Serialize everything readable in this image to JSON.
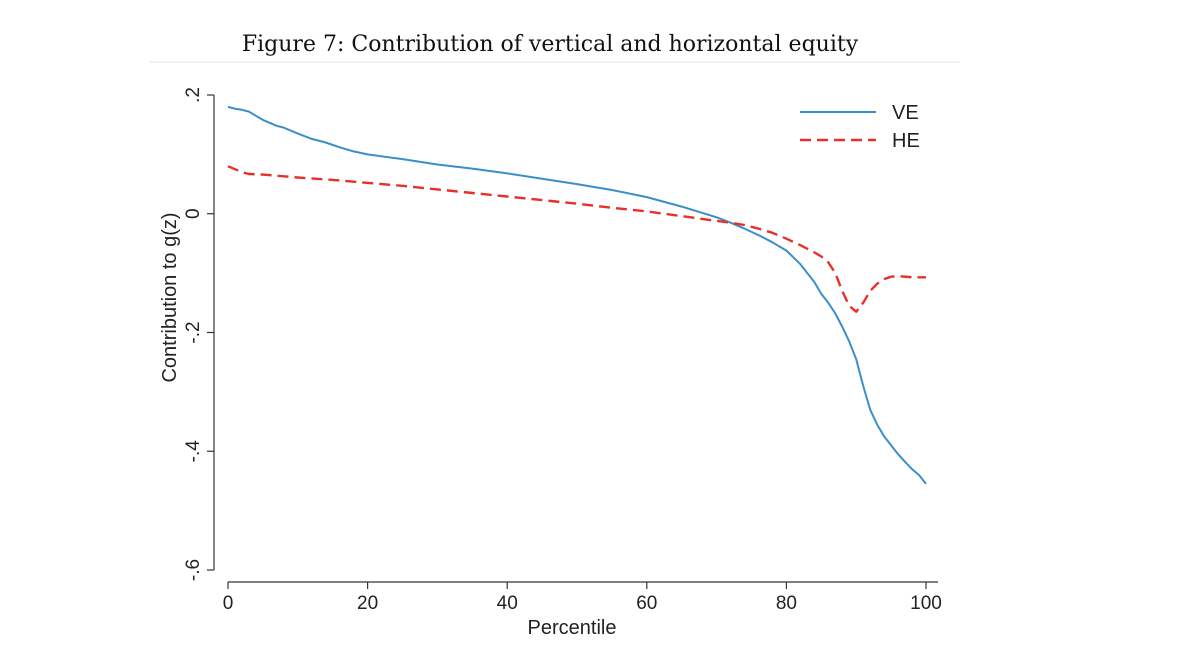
{
  "title": "Figure 7: Contribution of vertical and horizontal equity",
  "chart_data": {
    "type": "line",
    "xlabel": "Percentile",
    "ylabel": "Contribution to g(z)",
    "xlim": [
      0,
      100
    ],
    "ylim": [
      -0.6,
      0.2
    ],
    "xticks": [
      0,
      20,
      40,
      60,
      80,
      100
    ],
    "xtick_labels": [
      "0",
      "20",
      "40",
      "60",
      "80",
      "100"
    ],
    "yticks": [
      0.2,
      0,
      -0.2,
      -0.4,
      -0.6
    ],
    "ytick_labels": [
      ".2",
      "0",
      "-.2",
      "-.4",
      "-.6"
    ],
    "grid": false,
    "legend": "top-right",
    "series": [
      {
        "name": "VE",
        "color": "#3a8fc9",
        "style": "solid",
        "x": [
          0,
          1,
          2,
          3,
          4,
          5,
          6,
          7,
          8,
          10,
          12,
          14,
          16,
          18,
          20,
          25,
          30,
          35,
          40,
          45,
          50,
          55,
          60,
          65,
          70,
          72,
          74,
          76,
          78,
          80,
          82,
          84,
          85,
          86,
          87,
          88,
          89,
          90,
          91,
          92,
          93,
          94,
          95,
          96,
          97,
          98,
          99,
          100
        ],
        "y": [
          0.18,
          0.177,
          0.175,
          0.172,
          0.165,
          0.158,
          0.153,
          0.148,
          0.145,
          0.135,
          0.126,
          0.12,
          0.112,
          0.105,
          0.1,
          0.092,
          0.083,
          0.076,
          0.068,
          0.059,
          0.05,
          0.04,
          0.028,
          0.012,
          -0.006,
          -0.015,
          -0.025,
          -0.036,
          -0.048,
          -0.062,
          -0.085,
          -0.115,
          -0.135,
          -0.15,
          -0.168,
          -0.19,
          -0.215,
          -0.245,
          -0.29,
          -0.33,
          -0.355,
          -0.375,
          -0.39,
          -0.405,
          -0.418,
          -0.43,
          -0.44,
          -0.455
        ]
      },
      {
        "name": "HE",
        "color": "#e8302a",
        "style": "dashed",
        "x": [
          0,
          1,
          2,
          3,
          5,
          10,
          15,
          20,
          25,
          30,
          35,
          40,
          45,
          50,
          55,
          60,
          65,
          70,
          72,
          74,
          76,
          78,
          80,
          82,
          84,
          85,
          86,
          87,
          88,
          89,
          90,
          91,
          92,
          93,
          94,
          95,
          96,
          97,
          98,
          99,
          100
        ],
        "y": [
          0.08,
          0.075,
          0.07,
          0.067,
          0.066,
          0.061,
          0.057,
          0.052,
          0.047,
          0.041,
          0.035,
          0.029,
          0.023,
          0.017,
          0.01,
          0.004,
          -0.004,
          -0.012,
          -0.015,
          -0.019,
          -0.025,
          -0.032,
          -0.042,
          -0.053,
          -0.065,
          -0.072,
          -0.082,
          -0.1,
          -0.13,
          -0.155,
          -0.165,
          -0.15,
          -0.13,
          -0.118,
          -0.11,
          -0.106,
          -0.105,
          -0.106,
          -0.107,
          -0.107,
          -0.107
        ]
      }
    ]
  }
}
